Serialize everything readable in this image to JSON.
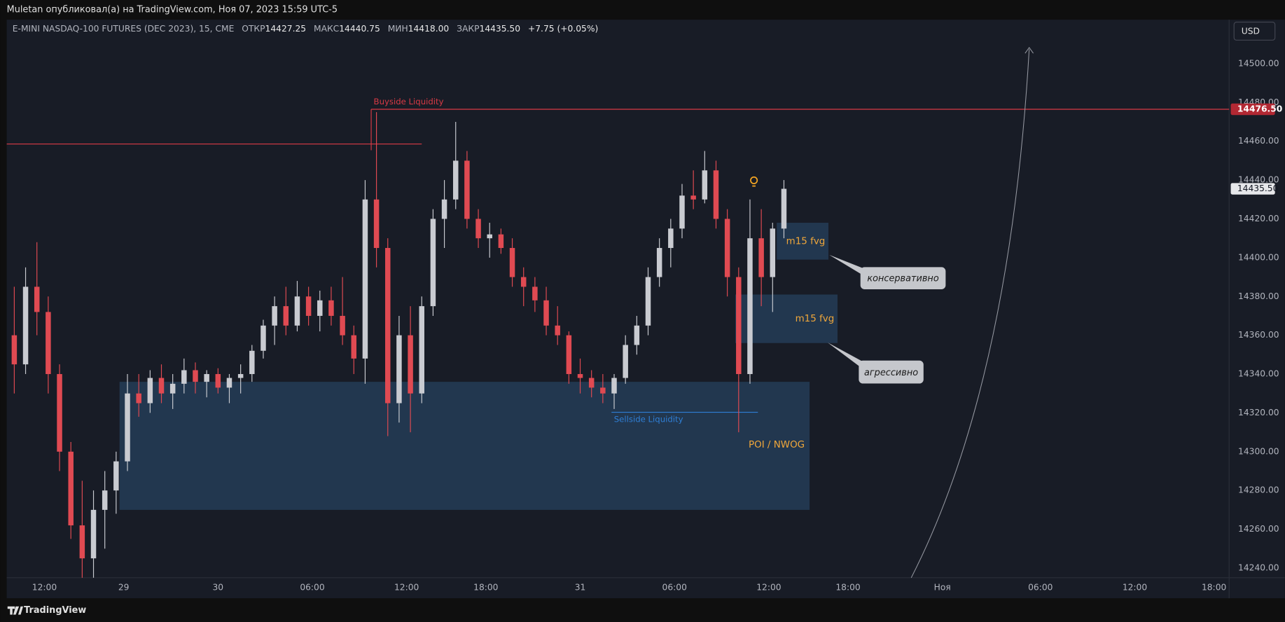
{
  "header": {
    "publisher": "Muletan опубликовал(а) на TradingView.com, Ноя 07, 2023 15:59 UTC-5",
    "symbol": "E-MINI NASDAQ-100 FUTURES (DEC 2023), 15, CME",
    "ohlc": [
      {
        "label": "ОТКР",
        "value": "14427.25"
      },
      {
        "label": "МАКС",
        "value": "14440.75"
      },
      {
        "label": "МИН",
        "value": "14418.00"
      },
      {
        "label": "ЗАКР",
        "value": "14435.50"
      }
    ],
    "change": "+7.75 (+0.05%)",
    "currency": "USD"
  },
  "footer": {
    "brand": "TradingView"
  },
  "callouts": [
    "консервативно",
    "агрессивно"
  ],
  "chart_data": {
    "type": "candlestick",
    "up_color": "#c9cbd1",
    "down_color": "#e04a52",
    "x": [
      2,
      5,
      8,
      11,
      14,
      17,
      20,
      23,
      26,
      29,
      32,
      35,
      38,
      41,
      44,
      47,
      50,
      53,
      56,
      59,
      62,
      65,
      68,
      71,
      74,
      77,
      80,
      83,
      86,
      89,
      92,
      95,
      98,
      101,
      104,
      107,
      110,
      113,
      116,
      119,
      122,
      125,
      128,
      131,
      134,
      137,
      140,
      143,
      146,
      149,
      152,
      155,
      158,
      161,
      164,
      167,
      170,
      173,
      176,
      179,
      182,
      185,
      188,
      191,
      194,
      197,
      200,
      203,
      206
    ],
    "open": [
      14360,
      14345,
      14385,
      14372,
      14340,
      14300,
      14262,
      14245,
      14270,
      14280,
      14295,
      14330,
      14325,
      14338,
      14330,
      14335,
      14342,
      14336,
      14340,
      14333,
      14338,
      14340,
      14352,
      14365,
      14375,
      14365,
      14380,
      14370,
      14378,
      14370,
      14360,
      14348,
      14430,
      14405,
      14325,
      14360,
      14330,
      14375,
      14420,
      14430,
      14450,
      14420,
      14410,
      14412,
      14405,
      14390,
      14385,
      14378,
      14365,
      14360,
      14340,
      14338,
      14333,
      14330,
      14338,
      14355,
      14365,
      14390,
      14405,
      14415,
      14432,
      14430,
      14445,
      14420,
      14390,
      14340,
      14410,
      14390,
      14415
    ],
    "high": [
      14385,
      14395,
      14408,
      14380,
      14345,
      14305,
      14285,
      14280,
      14290,
      14300,
      14340,
      14340,
      14342,
      14345,
      14340,
      14348,
      14346,
      14342,
      14343,
      14340,
      14345,
      14355,
      14368,
      14380,
      14385,
      14388,
      14385,
      14383,
      14385,
      14390,
      14365,
      14440,
      14475,
      14410,
      14370,
      14375,
      14380,
      14425,
      14440,
      14470,
      14455,
      14425,
      14418,
      14415,
      14410,
      14395,
      14390,
      14385,
      14375,
      14362,
      14348,
      14342,
      14340,
      14340,
      14360,
      14370,
      14395,
      14410,
      14420,
      14438,
      14445,
      14455,
      14450,
      14425,
      14395,
      14430,
      14425,
      14418,
      14440
    ],
    "low": [
      14330,
      14340,
      14360,
      14330,
      14290,
      14255,
      14235,
      14235,
      14250,
      14268,
      14290,
      14318,
      14320,
      14325,
      14322,
      14330,
      14330,
      14328,
      14330,
      14325,
      14330,
      14336,
      14348,
      14355,
      14360,
      14362,
      14365,
      14362,
      14365,
      14355,
      14340,
      14335,
      14395,
      14308,
      14315,
      14310,
      14325,
      14370,
      14405,
      14425,
      14415,
      14405,
      14400,
      14402,
      14385,
      14375,
      14372,
      14360,
      14355,
      14335,
      14330,
      14328,
      14325,
      14322,
      14335,
      14350,
      14360,
      14385,
      14395,
      14410,
      14425,
      14428,
      14415,
      14380,
      14310,
      14335,
      14375,
      14372,
      14410
    ],
    "close": [
      14345,
      14385,
      14372,
      14340,
      14300,
      14262,
      14245,
      14270,
      14280,
      14295,
      14330,
      14325,
      14338,
      14330,
      14335,
      14342,
      14336,
      14340,
      14333,
      14338,
      14340,
      14352,
      14365,
      14375,
      14365,
      14380,
      14370,
      14378,
      14370,
      14360,
      14348,
      14430,
      14405,
      14325,
      14360,
      14330,
      14375,
      14420,
      14430,
      14450,
      14420,
      14410,
      14412,
      14405,
      14390,
      14385,
      14378,
      14365,
      14360,
      14340,
      14338,
      14333,
      14330,
      14338,
      14355,
      14365,
      14390,
      14405,
      14415,
      14432,
      14430,
      14445,
      14420,
      14390,
      14340,
      14410,
      14390,
      14415,
      14435.5
    ],
    "last_price": {
      "value": 14435.5,
      "label": "14435.50"
    },
    "xlim": [
      0,
      324
    ],
    "ylim": [
      14235,
      14521
    ],
    "yticks": [
      {
        "value": 14240,
        "label": "14240.00"
      },
      {
        "value": 14260,
        "label": "14260.00"
      },
      {
        "value": 14280,
        "label": "14280.00"
      },
      {
        "value": 14300,
        "label": "14300.00"
      },
      {
        "value": 14320,
        "label": "14320.00"
      },
      {
        "value": 14340,
        "label": "14340.00"
      },
      {
        "value": 14360,
        "label": "14360.00"
      },
      {
        "value": 14380,
        "label": "14380.00"
      },
      {
        "value": 14400,
        "label": "14400.00"
      },
      {
        "value": 14420,
        "label": "14420.00"
      },
      {
        "value": 14440,
        "label": "14440.00"
      },
      {
        "value": 14460,
        "label": "14460.00"
      },
      {
        "value": 14480,
        "label": "14480.00"
      },
      {
        "value": 14500,
        "label": "14500.00"
      }
    ],
    "xticks": [
      {
        "value": 10,
        "label": "12:00"
      },
      {
        "value": 31,
        "label": "29"
      },
      {
        "value": 56,
        "label": "30"
      },
      {
        "value": 81,
        "label": "06:00"
      },
      {
        "value": 106,
        "label": "12:00"
      },
      {
        "value": 127,
        "label": "18:00"
      },
      {
        "value": 152,
        "label": "31"
      },
      {
        "value": 177,
        "label": "06:00"
      },
      {
        "value": 202,
        "label": "12:00"
      },
      {
        "value": 223,
        "label": "18:00"
      },
      {
        "value": 248,
        "label": "Ноя"
      },
      {
        "value": 274,
        "label": "06:00"
      },
      {
        "value": 299,
        "label": "12:00"
      },
      {
        "value": 320,
        "label": "18:00"
      }
    ],
    "levels": [
      {
        "name": "Buyside Liquidity",
        "price": {
          "value": 14476.5,
          "label": "14476.50"
        },
        "from": 96.6,
        "color": "#d83a45"
      },
      {
        "price": 14458.6,
        "from": 0,
        "to": 110,
        "color": "#d83a45"
      },
      {
        "name": "Sellside Liquidity",
        "price": 14320.3,
        "from": 160.3,
        "to": 199.1,
        "color": "#2f7fd6"
      }
    ],
    "zones": [
      {
        "label": "POI / NWOG",
        "x_range": [
          29.9,
          212.8
        ],
        "price_range": [
          14270,
          14336
        ]
      },
      {
        "label": "m15 fvg",
        "x_range": [
          204.1,
          217.8
        ],
        "price_range": [
          14399,
          14418
        ]
      },
      {
        "label": "m15 fvg",
        "x_range": [
          193.1,
          220.2
        ],
        "price_range": [
          14356,
          14381
        ]
      }
    ]
  }
}
